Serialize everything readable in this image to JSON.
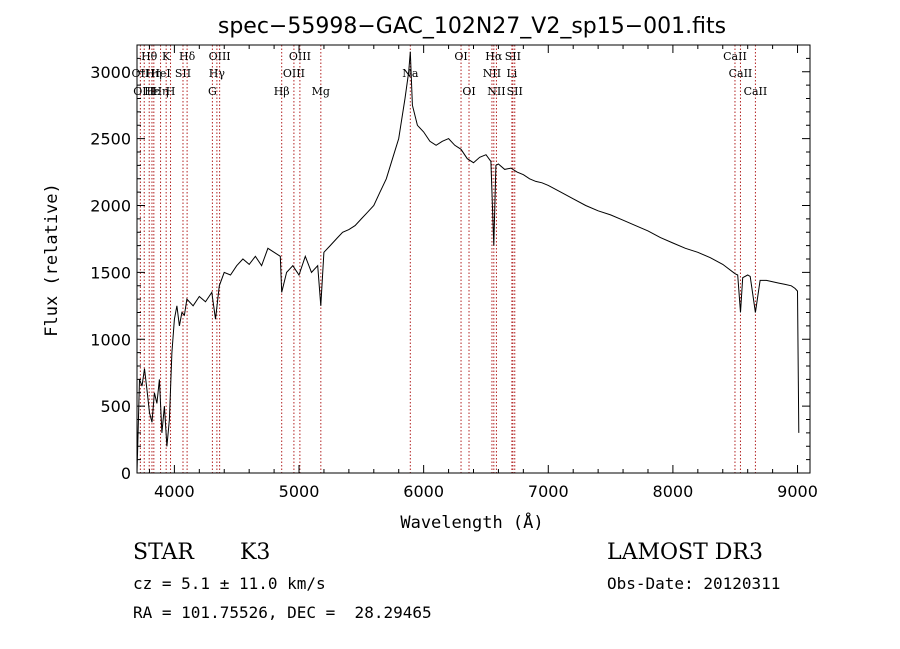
{
  "chart_data": {
    "type": "line",
    "title": "spec−55998−GAC_102N27_V2_sp15−001.fits",
    "xlabel": "Wavelength (Å)",
    "ylabel": "Flux (relative)",
    "xlim": [
      3700,
      9100
    ],
    "ylim": [
      0,
      3200
    ],
    "xticks": [
      4000,
      5000,
      6000,
      7000,
      8000,
      9000
    ],
    "yticks": [
      0,
      500,
      1000,
      1500,
      2000,
      2500,
      3000
    ],
    "grid": false,
    "series": [
      {
        "x": [
          3700,
          3720,
          3740,
          3760,
          3780,
          3800,
          3820,
          3840,
          3860,
          3880,
          3900,
          3920,
          3940,
          3960,
          3980,
          4000,
          4020,
          4040,
          4060,
          4080,
          4100,
          4150,
          4200,
          4250,
          4300,
          4330,
          4360,
          4400,
          4450,
          4500,
          4550,
          4600,
          4650,
          4700,
          4750,
          4800,
          4850,
          4861,
          4900,
          4950,
          5000,
          5050,
          5100,
          5150,
          5175,
          5200,
          5250,
          5300,
          5350,
          5400,
          5450,
          5500,
          5550,
          5600,
          5650,
          5700,
          5750,
          5800,
          5850,
          5880,
          5893,
          5910,
          5950,
          6000,
          6050,
          6100,
          6150,
          6200,
          6250,
          6300,
          6350,
          6400,
          6450,
          6500,
          6540,
          6563,
          6580,
          6600,
          6650,
          6700,
          6750,
          6800,
          6850,
          6900,
          6950,
          7000,
          7100,
          7200,
          7300,
          7400,
          7500,
          7600,
          7700,
          7800,
          7900,
          8000,
          8100,
          8200,
          8300,
          8400,
          8498,
          8520,
          8542,
          8560,
          8600,
          8620,
          8662,
          8700,
          8750,
          8800,
          8850,
          8900,
          8950,
          8980,
          9000,
          9010
        ],
        "y": [
          0,
          700,
          650,
          780,
          620,
          450,
          380,
          600,
          520,
          700,
          300,
          500,
          200,
          400,
          900,
          1150,
          1250,
          1100,
          1200,
          1180,
          1300,
          1250,
          1320,
          1280,
          1350,
          1150,
          1400,
          1500,
          1480,
          1550,
          1600,
          1560,
          1620,
          1550,
          1680,
          1650,
          1620,
          1350,
          1500,
          1550,
          1480,
          1620,
          1500,
          1550,
          1250,
          1650,
          1700,
          1750,
          1800,
          1820,
          1850,
          1900,
          1950,
          2000,
          2100,
          2200,
          2350,
          2500,
          2800,
          3000,
          3150,
          2750,
          2600,
          2550,
          2480,
          2450,
          2480,
          2500,
          2450,
          2420,
          2350,
          2320,
          2360,
          2380,
          2330,
          1700,
          2300,
          2310,
          2270,
          2280,
          2250,
          2230,
          2200,
          2180,
          2170,
          2150,
          2100,
          2050,
          2000,
          1960,
          1930,
          1890,
          1850,
          1810,
          1760,
          1720,
          1680,
          1650,
          1610,
          1560,
          1490,
          1480,
          1200,
          1460,
          1480,
          1470,
          1200,
          1440,
          1440,
          1430,
          1420,
          1410,
          1400,
          1380,
          1360,
          300
        ]
      }
    ],
    "line_labels": [
      {
        "text": "Hθ",
        "x": 3798,
        "row": 0
      },
      {
        "text": "OII",
        "x": 3727,
        "row": 1
      },
      {
        "text": "Hη",
        "x": 3835,
        "row": 1
      },
      {
        "text": "OIII",
        "x": 3758,
        "row": 2
      },
      {
        "text": "Hε",
        "x": 3820,
        "row": 2
      },
      {
        "text": "K",
        "x": 3934,
        "row": 0
      },
      {
        "text": "HeI",
        "x": 3889,
        "row": 1
      },
      {
        "text": "SII",
        "x": 4069,
        "row": 1
      },
      {
        "text": "Hη",
        "x": 3889,
        "row": 2
      },
      {
        "text": "H",
        "x": 3969,
        "row": 2
      },
      {
        "text": "Hδ",
        "x": 4102,
        "row": 0
      },
      {
        "text": "OIII",
        "x": 4363,
        "row": 0
      },
      {
        "text": "Hγ",
        "x": 4341,
        "row": 1
      },
      {
        "text": "G",
        "x": 4305,
        "row": 2
      },
      {
        "text": "OIII",
        "x": 5007,
        "row": 0
      },
      {
        "text": "OIII",
        "x": 4959,
        "row": 1
      },
      {
        "text": "Hβ",
        "x": 4861,
        "row": 2
      },
      {
        "text": "Mg",
        "x": 5175,
        "row": 2
      },
      {
        "text": "Na",
        "x": 5893,
        "row": 1
      },
      {
        "text": "OI",
        "x": 6300,
        "row": 0
      },
      {
        "text": "OI",
        "x": 6364,
        "row": 2
      },
      {
        "text": "Hα",
        "x": 6563,
        "row": 0
      },
      {
        "text": "SII",
        "x": 6716,
        "row": 0
      },
      {
        "text": "NII",
        "x": 6548,
        "row": 1
      },
      {
        "text": "Li",
        "x": 6708,
        "row": 1
      },
      {
        "text": "NII",
        "x": 6584,
        "row": 2
      },
      {
        "text": "SII",
        "x": 6731,
        "row": 2
      },
      {
        "text": "CaII",
        "x": 8498,
        "row": 0
      },
      {
        "text": "CaII",
        "x": 8542,
        "row": 1
      },
      {
        "text": "CaII",
        "x": 8662,
        "row": 2
      }
    ]
  },
  "info": {
    "object_class": "STAR",
    "subclass": "K3",
    "redshift": "cz = 5.1 ± 11.0 km/s",
    "coords": "RA = 101.75526, DEC =  28.29465",
    "survey": "LAMOST DR3",
    "obs_date": "Obs-Date: 20120311"
  },
  "colors": {
    "line": "#000000",
    "marker_lines": "#b22222"
  }
}
